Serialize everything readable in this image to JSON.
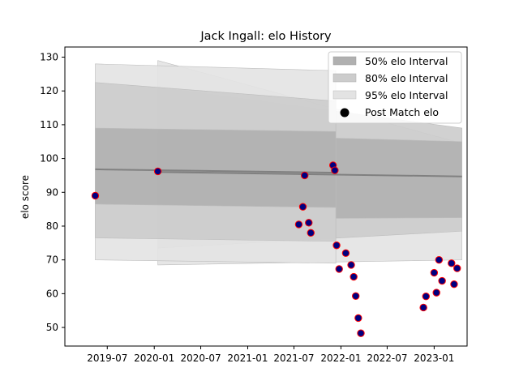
{
  "chart_data": {
    "type": "scatter",
    "title": "Jack Ingall: elo History",
    "xlabel": "",
    "ylabel": "elo score",
    "xlim": [
      "2019-01-16",
      "2023-05-10"
    ],
    "ylim": [
      44.5,
      133
    ],
    "xticks": [
      "2019-07",
      "2020-01",
      "2020-07",
      "2021-01",
      "2021-07",
      "2022-01",
      "2022-07",
      "2023-01"
    ],
    "yticks": [
      50,
      60,
      70,
      80,
      90,
      100,
      110,
      120,
      130
    ],
    "grid": false,
    "legend_position": "top-right",
    "legend": [
      {
        "label": "50% elo Interval",
        "color": "#b0b0b0"
      },
      {
        "label": "80% elo Interval",
        "color": "#cccccc"
      },
      {
        "label": "95% elo Interval",
        "color": "#e3e3e3"
      },
      {
        "label": "Post Match elo",
        "color": "#000000"
      }
    ],
    "intervals_main": {
      "x_range": [
        "2019-05-15",
        "2021-12-12"
      ],
      "mean": [
        96.8,
        95.8
      ],
      "band50": {
        "lower": [
          86.5,
          85.5
        ],
        "upper": [
          109.0,
          108.0
        ]
      },
      "band80": {
        "lower": [
          76.5,
          75.5
        ],
        "upper": [
          122.5,
          117.0
        ]
      },
      "band95": {
        "lower": [
          70.0,
          69.0
        ],
        "upper": [
          128.0,
          126.0
        ]
      }
    },
    "intervals_secondary": {
      "x_range": [
        "2020-01-15",
        "2023-04-20"
      ],
      "mean": [
        96.0,
        94.7
      ],
      "band50": {
        "lower": [
          82.0,
          82.5
        ],
        "upper": [
          107.5,
          105.0
        ]
      },
      "band80": {
        "lower": [
          73.5,
          78.5
        ],
        "upper": [
          121.0,
          109.0
        ]
      },
      "band95": {
        "lower": [
          68.5,
          70.0
        ],
        "upper": [
          129.0,
          104.5
        ]
      }
    },
    "points": {
      "name": "Post Match elo",
      "marker_fill": "#000080",
      "marker_edge": "#ff0000",
      "data": [
        {
          "x": "2019-05-15",
          "y": 89.0
        },
        {
          "x": "2020-01-15",
          "y": 96.2
        },
        {
          "x": "2021-07-20",
          "y": 80.5
        },
        {
          "x": "2021-08-05",
          "y": 85.7
        },
        {
          "x": "2021-08-12",
          "y": 95.0
        },
        {
          "x": "2021-08-28",
          "y": 81.0
        },
        {
          "x": "2021-09-05",
          "y": 78.0
        },
        {
          "x": "2021-12-01",
          "y": 98.0
        },
        {
          "x": "2021-12-08",
          "y": 96.5
        },
        {
          "x": "2021-12-15",
          "y": 74.3
        },
        {
          "x": "2021-12-25",
          "y": 67.3
        },
        {
          "x": "2022-01-20",
          "y": 72.0
        },
        {
          "x": "2022-02-10",
          "y": 68.5
        },
        {
          "x": "2022-02-20",
          "y": 65.0
        },
        {
          "x": "2022-02-28",
          "y": 59.3
        },
        {
          "x": "2022-03-10",
          "y": 52.8
        },
        {
          "x": "2022-03-20",
          "y": 48.3
        },
        {
          "x": "2022-11-20",
          "y": 55.9
        },
        {
          "x": "2022-11-30",
          "y": 59.2
        },
        {
          "x": "2023-01-01",
          "y": 66.2
        },
        {
          "x": "2023-01-10",
          "y": 60.3
        },
        {
          "x": "2023-01-20",
          "y": 70.0
        },
        {
          "x": "2023-02-01",
          "y": 63.8
        },
        {
          "x": "2023-03-10",
          "y": 69.0
        },
        {
          "x": "2023-03-20",
          "y": 62.8
        },
        {
          "x": "2023-04-01",
          "y": 67.5
        }
      ]
    }
  }
}
